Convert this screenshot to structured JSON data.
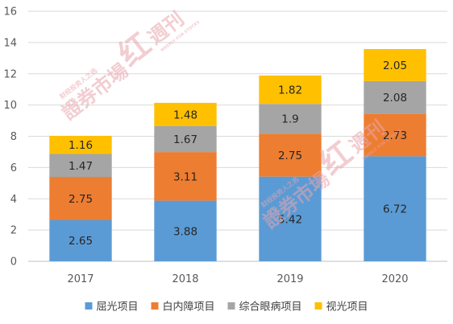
{
  "chart_data": {
    "type": "bar",
    "stacked": true,
    "categories": [
      "2017",
      "2018",
      "2019",
      "2020"
    ],
    "series": [
      {
        "name": "屈光项目",
        "color": "#5b9bd5",
        "values": [
          2.65,
          3.88,
          5.42,
          6.72
        ]
      },
      {
        "name": "白内障项目",
        "color": "#ed7d31",
        "values": [
          2.75,
          3.11,
          2.75,
          2.73
        ]
      },
      {
        "name": "综合眼病项目",
        "color": "#a5a5a5",
        "values": [
          1.47,
          1.67,
          1.9,
          2.08
        ]
      },
      {
        "name": "视光项目",
        "color": "#ffc000",
        "values": [
          1.16,
          1.48,
          1.82,
          2.05
        ]
      }
    ],
    "ylim": [
      0,
      16
    ],
    "yticks": [
      0,
      2,
      4,
      6,
      8,
      10,
      12,
      14,
      16
    ],
    "grid": true,
    "legend": "bottom"
  },
  "watermark": {
    "brand": "證券市場",
    "mark": "红",
    "weekly": "週刊",
    "tagline": "财经投资人之选",
    "english": "WEEKLY FOR STOCKS"
  }
}
